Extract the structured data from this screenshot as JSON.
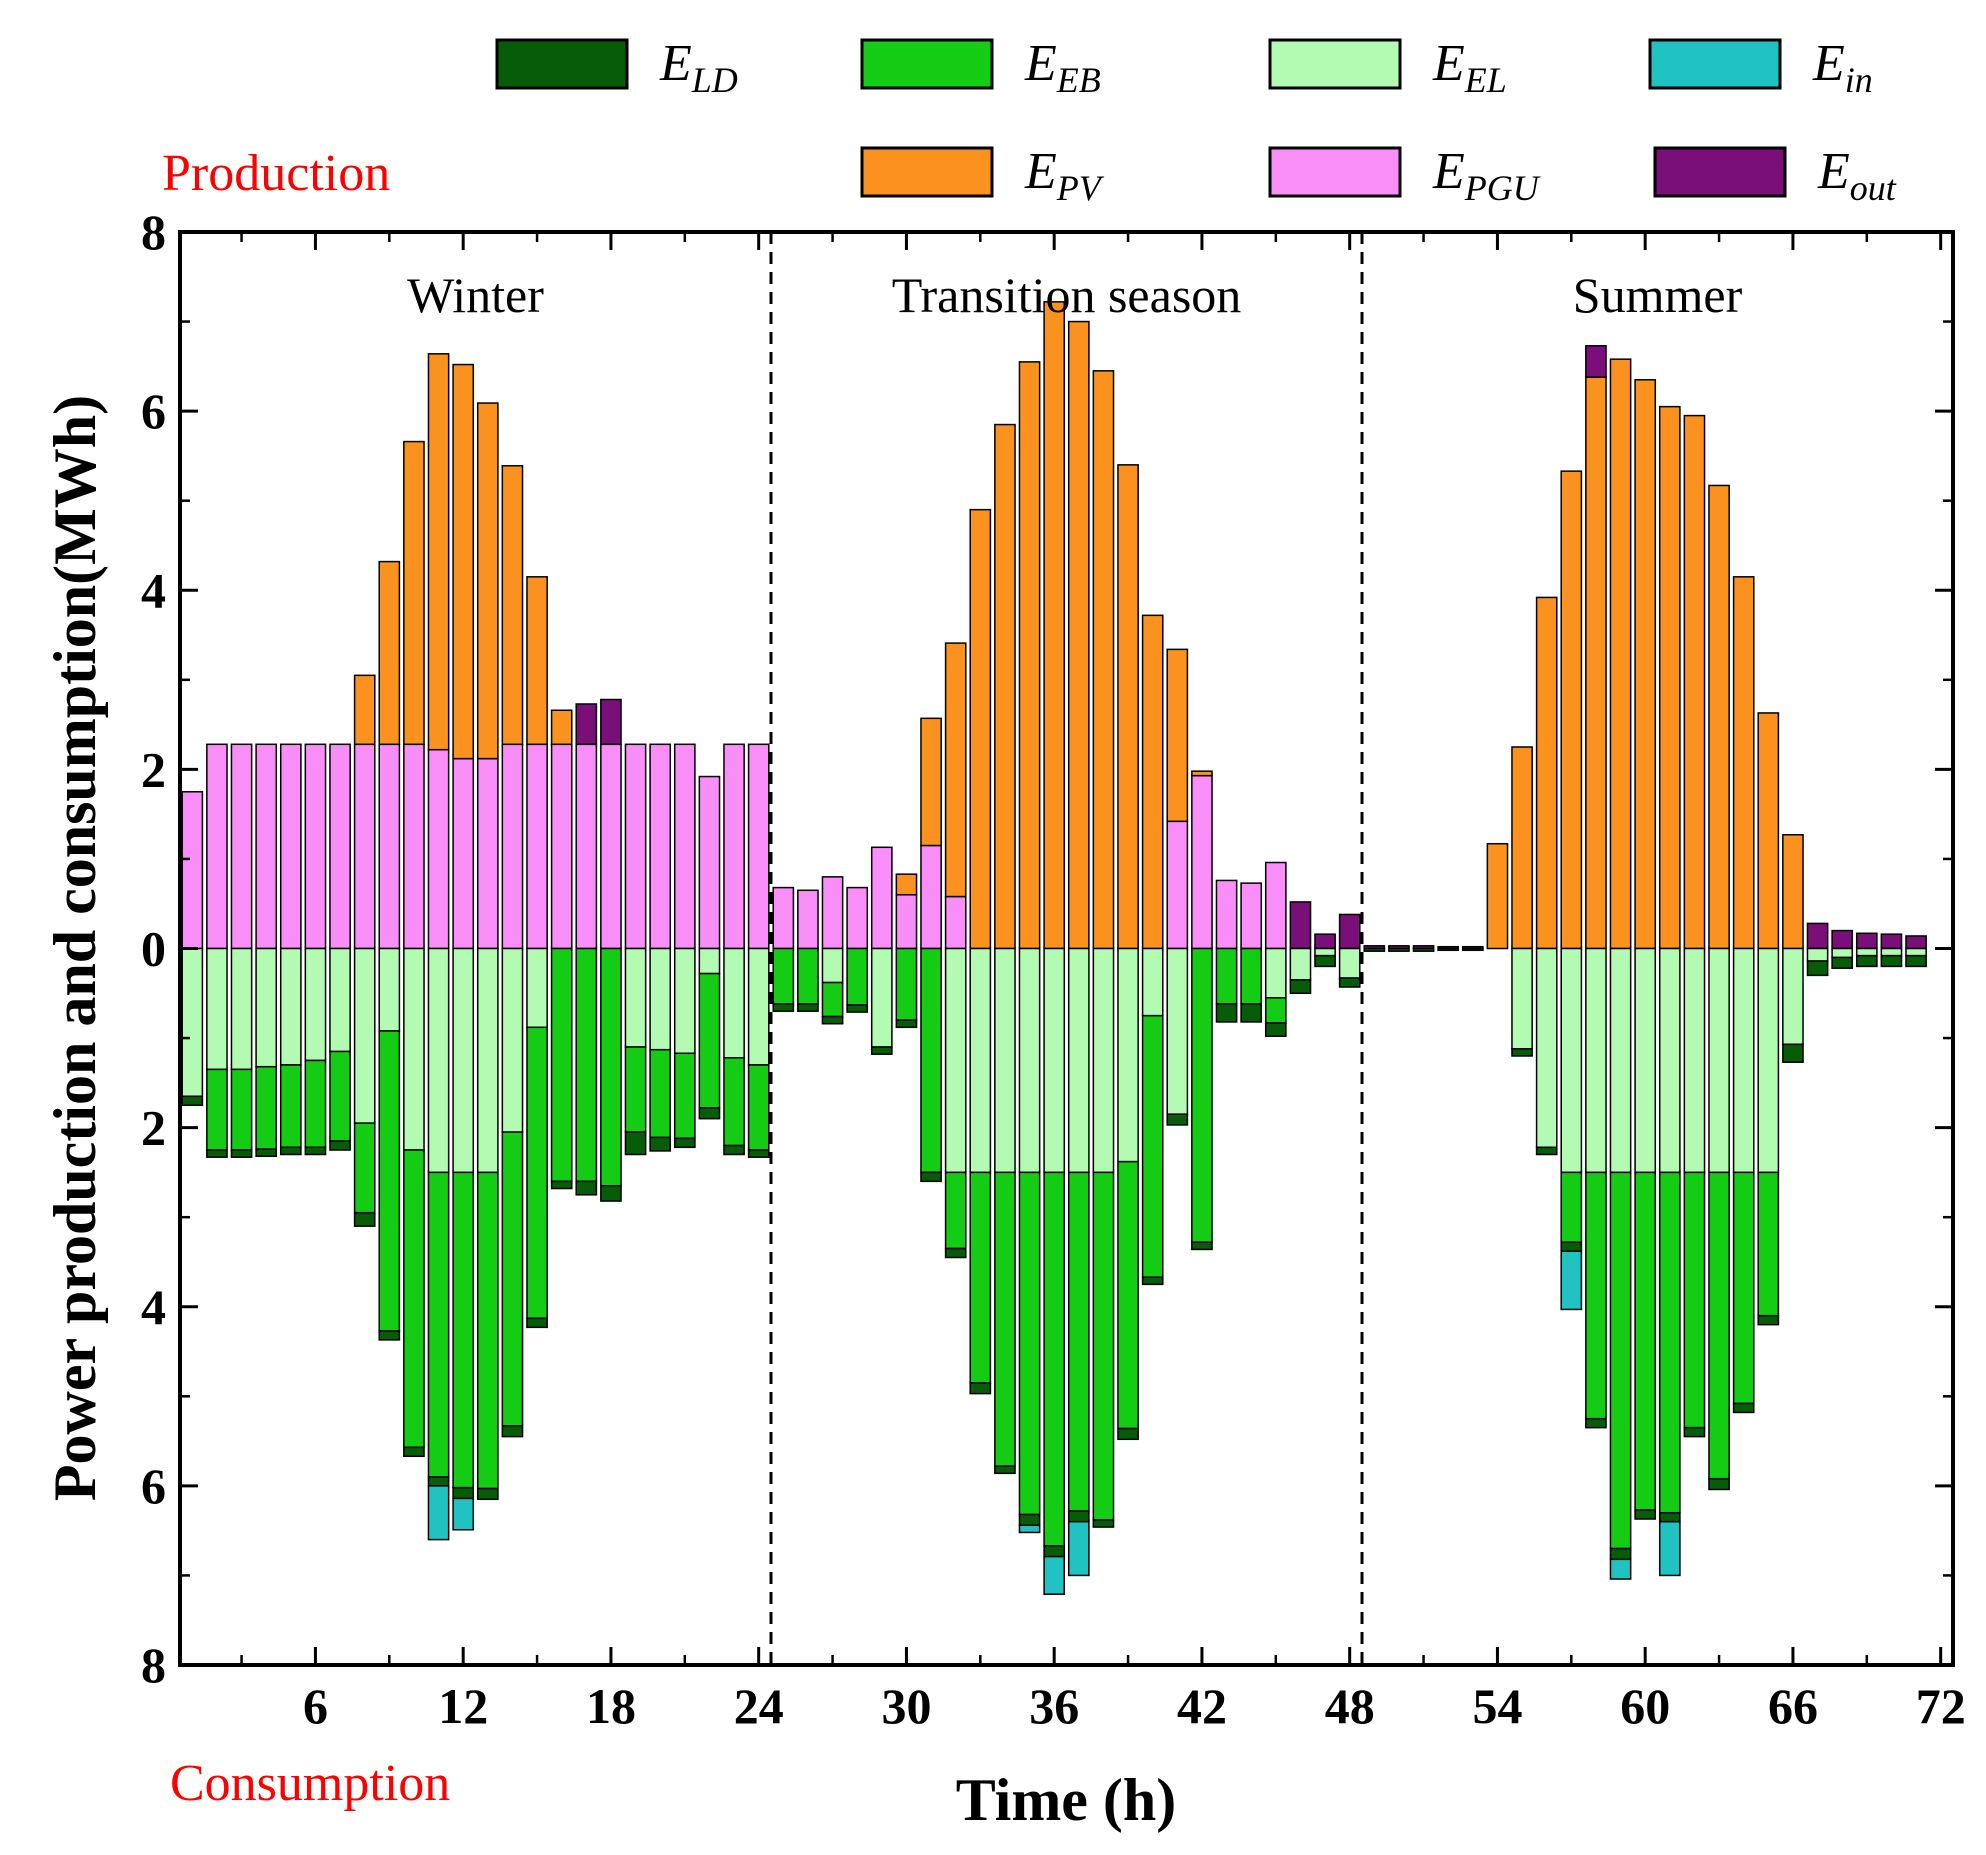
{
  "chart_data": {
    "type": "bar",
    "stacked": true,
    "title": "",
    "xlabel": "Time (h)",
    "ylabel": "Power production and consumption(MWh)",
    "production_label": "Production",
    "consumption_label": "Consumption",
    "xlim": [
      0.5,
      72.5
    ],
    "ylim": [
      -8,
      8
    ],
    "x_ticks": [
      6,
      12,
      18,
      24,
      30,
      36,
      42,
      48,
      54,
      60,
      66,
      72
    ],
    "y_ticks": [
      {
        "value": 8,
        "label": "8"
      },
      {
        "value": 6,
        "label": "6"
      },
      {
        "value": 4,
        "label": "4"
      },
      {
        "value": 2,
        "label": "2"
      },
      {
        "value": 0,
        "label": "0"
      },
      {
        "value": -2,
        "label": "2"
      },
      {
        "value": -4,
        "label": "4"
      },
      {
        "value": -6,
        "label": "6"
      },
      {
        "value": -8,
        "label": "8"
      }
    ],
    "season_dividers": [
      24.5,
      48.5
    ],
    "season_labels": [
      {
        "text": "Winter",
        "x": 12.5
      },
      {
        "text": "Transition season",
        "x": 36.5
      },
      {
        "text": "Summer",
        "x": 60.5
      }
    ],
    "legend_position": "top",
    "legend": [
      {
        "key": "E_LD",
        "main": "E",
        "sub": "LD",
        "color": "#075c07"
      },
      {
        "key": "E_EB",
        "main": "E",
        "sub": "EB",
        "color": "#14cc14"
      },
      {
        "key": "E_EL",
        "main": "E",
        "sub": "EL",
        "color": "#b3fab3"
      },
      {
        "key": "E_in",
        "main": "E",
        "sub": "in",
        "color": "#20c2c2"
      },
      {
        "key": "E_PV",
        "main": "E",
        "sub": "PV",
        "color": "#fb9220"
      },
      {
        "key": "E_PGU",
        "main": "E",
        "sub": "PGU",
        "color": "#f98ef9"
      },
      {
        "key": "E_out",
        "main": "E",
        "sub": "out",
        "color": "#7a0f7a"
      }
    ],
    "hours": [
      1,
      2,
      3,
      4,
      5,
      6,
      7,
      8,
      9,
      10,
      11,
      12,
      13,
      14,
      15,
      16,
      17,
      18,
      19,
      20,
      21,
      22,
      23,
      24,
      25,
      26,
      27,
      28,
      29,
      30,
      31,
      32,
      33,
      34,
      35,
      36,
      37,
      38,
      39,
      40,
      41,
      42,
      43,
      44,
      45,
      46,
      47,
      48,
      49,
      50,
      51,
      52,
      53,
      54,
      55,
      56,
      57,
      58,
      59,
      60,
      61,
      62,
      63,
      64,
      65,
      66,
      67,
      68,
      69,
      70,
      71,
      72
    ],
    "production": {
      "E_PGU": [
        1.75,
        2.28,
        2.28,
        2.28,
        2.28,
        2.28,
        2.28,
        2.28,
        2.28,
        2.28,
        2.22,
        2.12,
        2.12,
        2.28,
        2.28,
        2.28,
        2.28,
        2.28,
        2.28,
        2.28,
        2.28,
        1.92,
        2.28,
        2.28,
        0.68,
        0.65,
        0.8,
        0.68,
        1.13,
        0.6,
        1.15,
        0.58,
        0,
        0,
        0,
        0,
        0,
        0,
        0,
        0,
        1.42,
        1.93,
        0.76,
        0.73,
        0.96,
        0,
        0,
        0,
        0,
        0,
        0,
        0,
        0,
        0,
        0,
        0,
        0,
        0,
        0,
        0,
        0,
        0,
        0,
        0,
        0,
        0,
        0,
        0,
        0,
        0,
        0,
        0
      ],
      "E_PV": [
        0,
        0,
        0,
        0,
        0,
        0,
        0,
        0.77,
        2.04,
        3.38,
        4.42,
        4.4,
        3.97,
        3.11,
        1.87,
        0.38,
        0,
        0,
        0,
        0,
        0,
        0,
        0,
        0,
        0,
        0,
        0,
        0,
        0,
        0.23,
        1.42,
        2.83,
        4.9,
        5.85,
        6.55,
        7.22,
        7.0,
        6.45,
        5.4,
        3.72,
        1.92,
        0.05,
        0,
        0,
        0,
        0,
        0,
        0,
        0,
        0,
        0,
        0,
        0,
        1.17,
        2.25,
        3.92,
        5.33,
        6.38,
        6.58,
        6.35,
        6.05,
        5.95,
        5.17,
        4.15,
        2.63,
        1.27,
        0,
        0,
        0,
        0,
        0,
        0
      ],
      "E_out": [
        0,
        0,
        0,
        0,
        0,
        0,
        0,
        0,
        0,
        0,
        0,
        0,
        0,
        0,
        0,
        0,
        0.45,
        0.5,
        0,
        0,
        0,
        0,
        0,
        0,
        0,
        0,
        0,
        0,
        0,
        0,
        0,
        0,
        0,
        0,
        0,
        0,
        0,
        0,
        0,
        0,
        0,
        0,
        0,
        0,
        0,
        0.52,
        0.16,
        0.38,
        0.03,
        0.03,
        0.03,
        0.02,
        0.02,
        0,
        0,
        0,
        0,
        0.35,
        0,
        0,
        0,
        0,
        0,
        0,
        0,
        0,
        0.28,
        0.2,
        0.17,
        0.16,
        0.14,
        0
      ]
    },
    "consumption": {
      "E_EL": [
        1.65,
        1.35,
        1.35,
        1.32,
        1.3,
        1.25,
        1.15,
        1.95,
        0.92,
        2.25,
        2.5,
        2.5,
        2.5,
        2.05,
        0.88,
        0,
        0,
        0,
        1.1,
        1.13,
        1.17,
        0.28,
        1.22,
        1.3,
        0,
        0,
        0.38,
        0,
        1.1,
        0,
        0,
        2.5,
        2.5,
        2.5,
        2.5,
        2.5,
        2.5,
        2.5,
        2.38,
        0.75,
        1.85,
        0,
        0,
        0,
        0.55,
        0.35,
        0.08,
        0.33,
        0,
        0,
        0,
        0,
        0,
        0,
        1.12,
        2.22,
        2.5,
        2.5,
        2.5,
        2.5,
        2.5,
        2.5,
        2.5,
        2.5,
        2.5,
        1.07,
        0.14,
        0.1,
        0.08,
        0.08,
        0.08,
        0
      ],
      "E_EB": [
        0,
        0.9,
        0.9,
        0.92,
        0.92,
        0.97,
        1.0,
        1.0,
        3.35,
        3.32,
        3.4,
        3.52,
        3.53,
        3.28,
        3.25,
        2.6,
        2.6,
        2.65,
        0.95,
        0.98,
        0.95,
        1.5,
        0.98,
        0.95,
        0.62,
        0.62,
        0.38,
        0.63,
        0,
        0.8,
        2.5,
        0.85,
        2.35,
        3.28,
        3.82,
        4.17,
        3.78,
        3.88,
        2.98,
        2.92,
        0,
        3.28,
        0.62,
        0.62,
        0.28,
        0,
        0,
        0,
        0,
        0,
        0,
        0,
        0,
        0,
        0,
        0,
        0.78,
        2.75,
        4.2,
        3.77,
        3.8,
        2.85,
        3.42,
        2.58,
        1.6,
        0,
        0,
        0,
        0,
        0,
        0,
        0
      ],
      "E_LD": [
        0.1,
        0.08,
        0.08,
        0.08,
        0.08,
        0.08,
        0.1,
        0.15,
        0.1,
        0.1,
        0.1,
        0.12,
        0.12,
        0.12,
        0.1,
        0.08,
        0.15,
        0.17,
        0.25,
        0.15,
        0.1,
        0.12,
        0.1,
        0.08,
        0.08,
        0.08,
        0.08,
        0.08,
        0.08,
        0.08,
        0.1,
        0.1,
        0.12,
        0.08,
        0.12,
        0.12,
        0.12,
        0.08,
        0.12,
        0.08,
        0.12,
        0.08,
        0.2,
        0.2,
        0.15,
        0.15,
        0.12,
        0.1,
        0.03,
        0.03,
        0.03,
        0.02,
        0.02,
        0,
        0.08,
        0.08,
        0.1,
        0.1,
        0.12,
        0.1,
        0.1,
        0.1,
        0.12,
        0.1,
        0.1,
        0.2,
        0.16,
        0.12,
        0.12,
        0.12,
        0.12,
        0
      ],
      "E_in": [
        0,
        0,
        0,
        0,
        0,
        0,
        0,
        0,
        0,
        0,
        0.6,
        0.35,
        0,
        0,
        0,
        0,
        0,
        0,
        0,
        0,
        0,
        0,
        0,
        0,
        0,
        0,
        0,
        0,
        0,
        0,
        0,
        0,
        0,
        0,
        0.08,
        0.42,
        0.6,
        0,
        0,
        0,
        0,
        0,
        0,
        0,
        0,
        0,
        0,
        0,
        0,
        0,
        0,
        0,
        0,
        0,
        0,
        0,
        0.65,
        0,
        0.22,
        0,
        0.6,
        0,
        0,
        0,
        0,
        0,
        0,
        0,
        0,
        0,
        0,
        0
      ]
    }
  }
}
